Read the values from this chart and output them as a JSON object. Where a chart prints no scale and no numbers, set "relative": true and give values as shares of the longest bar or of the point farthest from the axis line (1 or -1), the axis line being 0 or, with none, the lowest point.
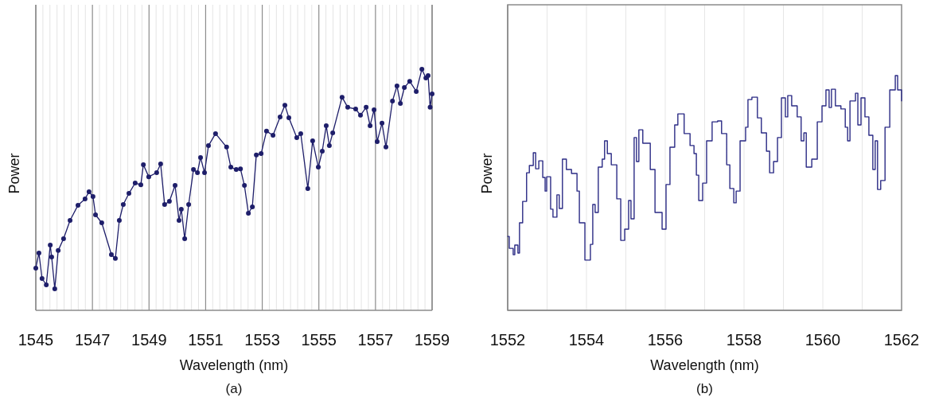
{
  "chart_data": [
    {
      "type": "line",
      "relative": true,
      "xlabel": "Wavelength (nm)",
      "ylabel": "Power",
      "annotations": [
        "(a)"
      ],
      "grid": "x",
      "marker": "circle",
      "line_style": "solid",
      "xlim": [
        1545,
        1559
      ],
      "xticks": [
        1545,
        {
          "value": 1545.25,
          "label": null
        },
        {
          "value": 1545.5,
          "label": null
        },
        {
          "value": 1545.75,
          "label": null
        },
        {
          "value": 1546,
          "label": null
        },
        {
          "value": 1546.25,
          "label": null
        },
        {
          "value": 1546.5,
          "label": null
        },
        {
          "value": 1546.75,
          "label": null
        },
        1547,
        {
          "value": 1547.25,
          "label": null
        },
        {
          "value": 1547.5,
          "label": null
        },
        {
          "value": 1547.75,
          "label": null
        },
        {
          "value": 1548,
          "label": null
        },
        {
          "value": 1548.25,
          "label": null
        },
        {
          "value": 1548.5,
          "label": null
        },
        {
          "value": 1548.75,
          "label": null
        },
        1549,
        {
          "value": 1549.25,
          "label": null
        },
        {
          "value": 1549.5,
          "label": null
        },
        {
          "value": 1549.75,
          "label": null
        },
        {
          "value": 1550,
          "label": null
        },
        {
          "value": 1550.25,
          "label": null
        },
        {
          "value": 1550.5,
          "label": null
        },
        {
          "value": 1550.75,
          "label": null
        },
        1551,
        {
          "value": 1551.25,
          "label": null
        },
        {
          "value": 1551.5,
          "label": null
        },
        {
          "value": 1551.75,
          "label": null
        },
        {
          "value": 1552,
          "label": null
        },
        {
          "value": 1552.25,
          "label": null
        },
        {
          "value": 1552.5,
          "label": null
        },
        {
          "value": 1552.75,
          "label": null
        },
        1553,
        {
          "value": 1553.25,
          "label": null
        },
        {
          "value": 1553.5,
          "label": null
        },
        {
          "value": 1553.75,
          "label": null
        },
        {
          "value": 1554,
          "label": null
        },
        {
          "value": 1554.25,
          "label": null
        },
        {
          "value": 1554.5,
          "label": null
        },
        {
          "value": 1554.75,
          "label": null
        },
        1555,
        {
          "value": 1555.25,
          "label": null
        },
        {
          "value": 1555.5,
          "label": null
        },
        {
          "value": 1555.75,
          "label": null
        },
        {
          "value": 1556,
          "label": null
        },
        {
          "value": 1556.25,
          "label": null
        },
        {
          "value": 1556.5,
          "label": null
        },
        {
          "value": 1556.75,
          "label": null
        },
        1557,
        {
          "value": 1557.25,
          "label": null
        },
        {
          "value": 1557.5,
          "label": null
        },
        {
          "value": 1557.75,
          "label": null
        },
        {
          "value": 1558,
          "label": null
        },
        {
          "value": 1558.25,
          "label": null
        },
        {
          "value": 1558.5,
          "label": null
        },
        {
          "value": 1558.75,
          "label": null
        },
        1559
      ],
      "series": [
        {
          "color": "#1e1e6a",
          "x": [
            1545.0,
            1545.11,
            1545.22,
            1545.37,
            1545.51,
            1545.56,
            1545.67,
            1545.79,
            1545.98,
            1546.21,
            1546.49,
            1546.74,
            1546.88,
            1547.02,
            1547.11,
            1547.33,
            1547.67,
            1547.81,
            1547.95,
            1548.09,
            1548.29,
            1548.51,
            1548.71,
            1548.8,
            1548.99,
            1549.27,
            1549.41,
            1549.55,
            1549.72,
            1549.92,
            1550.06,
            1550.14,
            1550.26,
            1550.4,
            1550.57,
            1550.71,
            1550.82,
            1550.96,
            1551.1,
            1551.35,
            1551.74,
            1551.89,
            1552.08,
            1552.23,
            1552.37,
            1552.51,
            1552.65,
            1552.79,
            1552.96,
            1553.15,
            1553.38,
            1553.63,
            1553.8,
            1553.94,
            1554.22,
            1554.36,
            1554.61,
            1554.78,
            1554.98,
            1555.12,
            1555.26,
            1555.37,
            1555.49,
            1555.82,
            1556.02,
            1556.3,
            1556.47,
            1556.67,
            1556.81,
            1556.95,
            1557.06,
            1557.23,
            1557.37,
            1557.6,
            1557.76,
            1557.88,
            1558.02,
            1558.21,
            1558.44,
            1558.64,
            1558.78,
            1558.86,
            1558.93,
            1559.0
          ],
          "values": [
            0.175,
            0.238,
            0.132,
            0.106,
            0.271,
            0.221,
            0.089,
            0.248,
            0.297,
            0.373,
            0.436,
            0.462,
            0.492,
            0.472,
            0.396,
            0.363,
            0.231,
            0.215,
            0.373,
            0.439,
            0.485,
            0.528,
            0.521,
            0.604,
            0.554,
            0.571,
            0.607,
            0.439,
            0.452,
            0.518,
            0.373,
            0.419,
            0.297,
            0.439,
            0.584,
            0.571,
            0.634,
            0.571,
            0.683,
            0.733,
            0.677,
            0.594,
            0.584,
            0.587,
            0.518,
            0.403,
            0.429,
            0.644,
            0.65,
            0.743,
            0.726,
            0.802,
            0.851,
            0.799,
            0.716,
            0.733,
            0.505,
            0.703,
            0.594,
            0.66,
            0.766,
            0.683,
            0.736,
            0.884,
            0.842,
            0.835,
            0.809,
            0.842,
            0.766,
            0.832,
            0.7,
            0.776,
            0.677,
            0.868,
            0.931,
            0.858,
            0.924,
            0.95,
            0.908,
            1,
            0.964,
            0.974,
            0.842,
            0.898
          ]
        }
      ]
    },
    {
      "type": "step",
      "relative": true,
      "xlabel": "Wavelength (nm)",
      "ylabel": "Power",
      "annotations": [
        "(b)"
      ],
      "grid": "x",
      "line_style": "solid",
      "xlim": [
        1552,
        1562
      ],
      "xticks": [
        1552,
        {
          "value": 1553,
          "label": null
        },
        1554,
        {
          "value": 1555,
          "label": null
        },
        1556,
        {
          "value": 1557,
          "label": null
        },
        1558,
        {
          "value": 1559,
          "label": null
        },
        1560,
        {
          "value": 1561,
          "label": null
        },
        1562
      ],
      "series": [
        {
          "color": "#2b2b85",
          "x": [
            1552.0,
            1552.04,
            1552.14,
            1552.18,
            1552.26,
            1552.3,
            1552.38,
            1552.48,
            1552.55,
            1552.65,
            1552.71,
            1552.79,
            1552.89,
            1552.95,
            1552.99,
            1553.09,
            1553.15,
            1553.25,
            1553.31,
            1553.39,
            1553.49,
            1553.62,
            1553.76,
            1553.82,
            1553.96,
            1554.1,
            1554.16,
            1554.22,
            1554.3,
            1554.4,
            1554.46,
            1554.53,
            1554.63,
            1554.77,
            1554.87,
            1554.97,
            1555.07,
            1555.13,
            1555.21,
            1555.27,
            1555.33,
            1555.43,
            1555.62,
            1555.74,
            1555.92,
            1556.02,
            1556.12,
            1556.24,
            1556.32,
            1556.42,
            1556.48,
            1556.63,
            1556.73,
            1556.79,
            1556.85,
            1556.95,
            1557.05,
            1557.19,
            1557.33,
            1557.43,
            1557.56,
            1557.64,
            1557.74,
            1557.8,
            1557.9,
            1558.04,
            1558.1,
            1558.2,
            1558.34,
            1558.44,
            1558.57,
            1558.65,
            1558.75,
            1558.85,
            1558.95,
            1559.05,
            1559.11,
            1559.21,
            1559.35,
            1559.45,
            1559.52,
            1559.58,
            1559.72,
            1559.86,
            1559.98,
            1560.08,
            1560.16,
            1560.22,
            1560.32,
            1560.46,
            1560.57,
            1560.63,
            1560.69,
            1560.83,
            1560.89,
            1560.97,
            1561.07,
            1561.17,
            1561.27,
            1561.33,
            1561.39,
            1561.47,
            1561.58,
            1561.7,
            1561.84,
            1561.9,
            1562.0
          ],
          "values": [
            0.315,
            0.264,
            0.237,
            0.278,
            0.244,
            0.373,
            0.464,
            0.586,
            0.617,
            0.671,
            0.603,
            0.637,
            0.566,
            0.508,
            0.569,
            0.431,
            0.397,
            0.492,
            0.434,
            0.644,
            0.6,
            0.583,
            0.508,
            0.373,
            0.214,
            0.281,
            0.451,
            0.417,
            0.61,
            0.644,
            0.722,
            0.668,
            0.62,
            0.475,
            0.298,
            0.346,
            0.468,
            0.39,
            0.736,
            0.634,
            0.769,
            0.712,
            0.6,
            0.417,
            0.346,
            0.536,
            0.695,
            0.79,
            0.837,
            0.837,
            0.753,
            0.702,
            0.668,
            0.576,
            0.468,
            0.542,
            0.722,
            0.803,
            0.807,
            0.753,
            0.62,
            0.519,
            0.458,
            0.508,
            0.722,
            0.78,
            0.898,
            0.908,
            0.82,
            0.756,
            0.678,
            0.586,
            0.634,
            0.736,
            0.905,
            0.824,
            0.915,
            0.871,
            0.824,
            0.722,
            0.756,
            0.61,
            0.644,
            0.803,
            0.871,
            0.939,
            0.864,
            0.942,
            0.871,
            0.858,
            0.78,
            0.722,
            0.892,
            0.925,
            0.79,
            0.905,
            0.824,
            0.746,
            0.6,
            0.722,
            0.515,
            0.553,
            0.78,
            0.939,
            1,
            0.939,
            0.892
          ]
        }
      ]
    }
  ]
}
